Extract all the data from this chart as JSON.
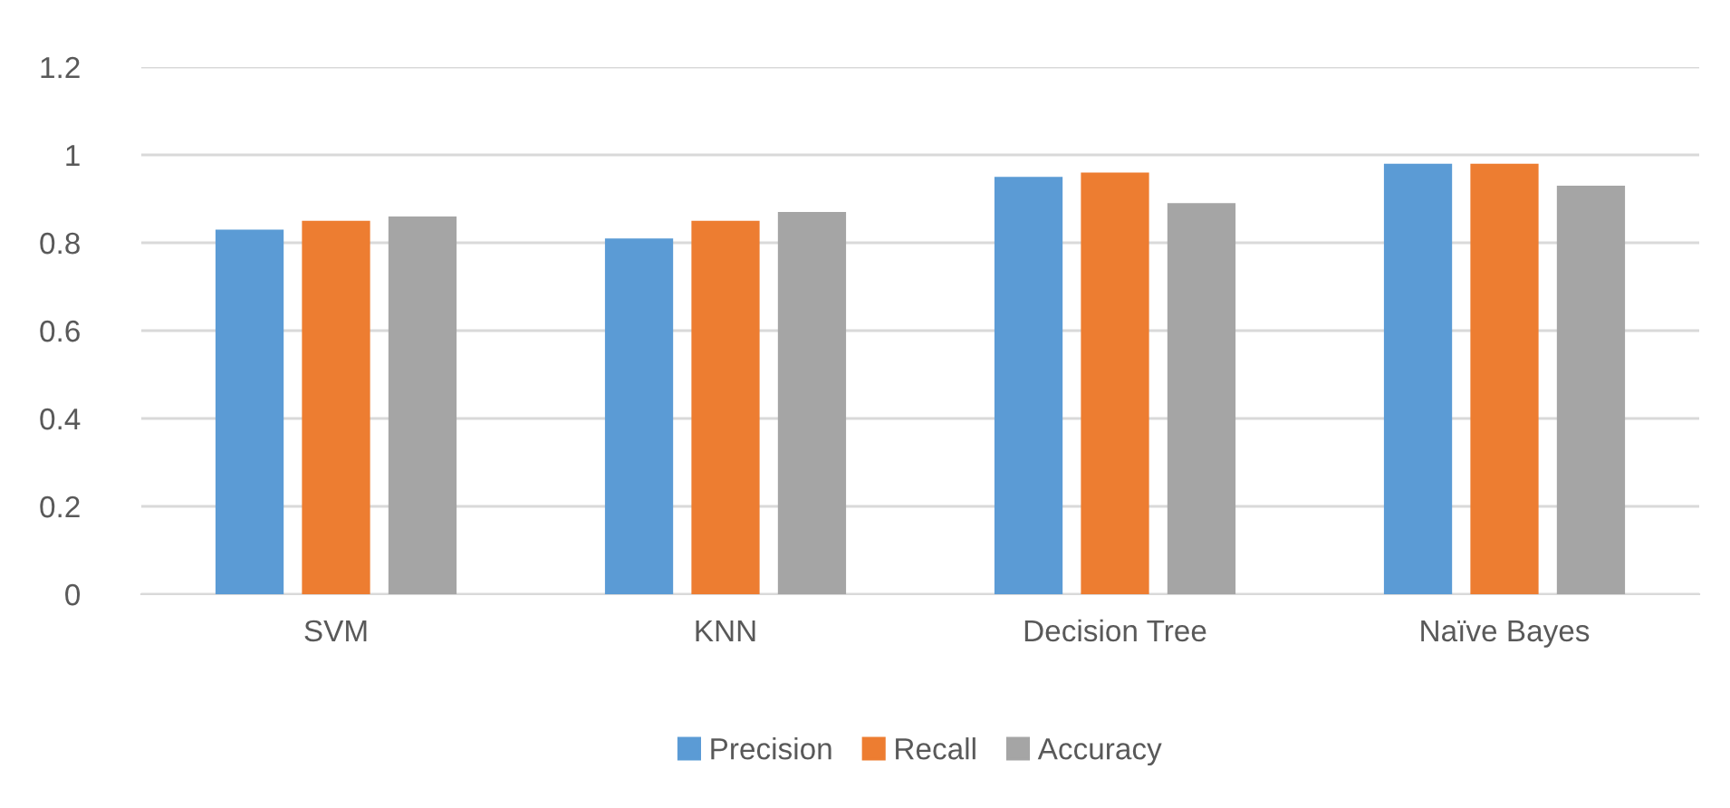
{
  "chart_data": {
    "type": "bar",
    "categories": [
      "SVM",
      "KNN",
      "Decision Tree",
      "Naïve Bayes"
    ],
    "series": [
      {
        "name": "Precision",
        "color": "#5b9bd5",
        "values": [
          0.83,
          0.81,
          0.95,
          0.98
        ]
      },
      {
        "name": "Recall",
        "color": "#ed7d31",
        "values": [
          0.85,
          0.85,
          0.96,
          0.98
        ]
      },
      {
        "name": "Accuracy",
        "color": "#a5a5a5",
        "values": [
          0.86,
          0.87,
          0.89,
          0.93
        ]
      }
    ],
    "ylim": [
      0,
      1.2
    ],
    "yticks": [
      0,
      {
        "value": 0.2,
        "label": "0.2"
      },
      {
        "value": 0.4,
        "label": "0.4"
      },
      {
        "value": 0.6,
        "label": "0.6"
      },
      {
        "value": 0.8,
        "label": "0.8"
      },
      1,
      {
        "value": 1.2,
        "label": "1.2"
      }
    ],
    "grid": "y",
    "legend": "bottom"
  }
}
